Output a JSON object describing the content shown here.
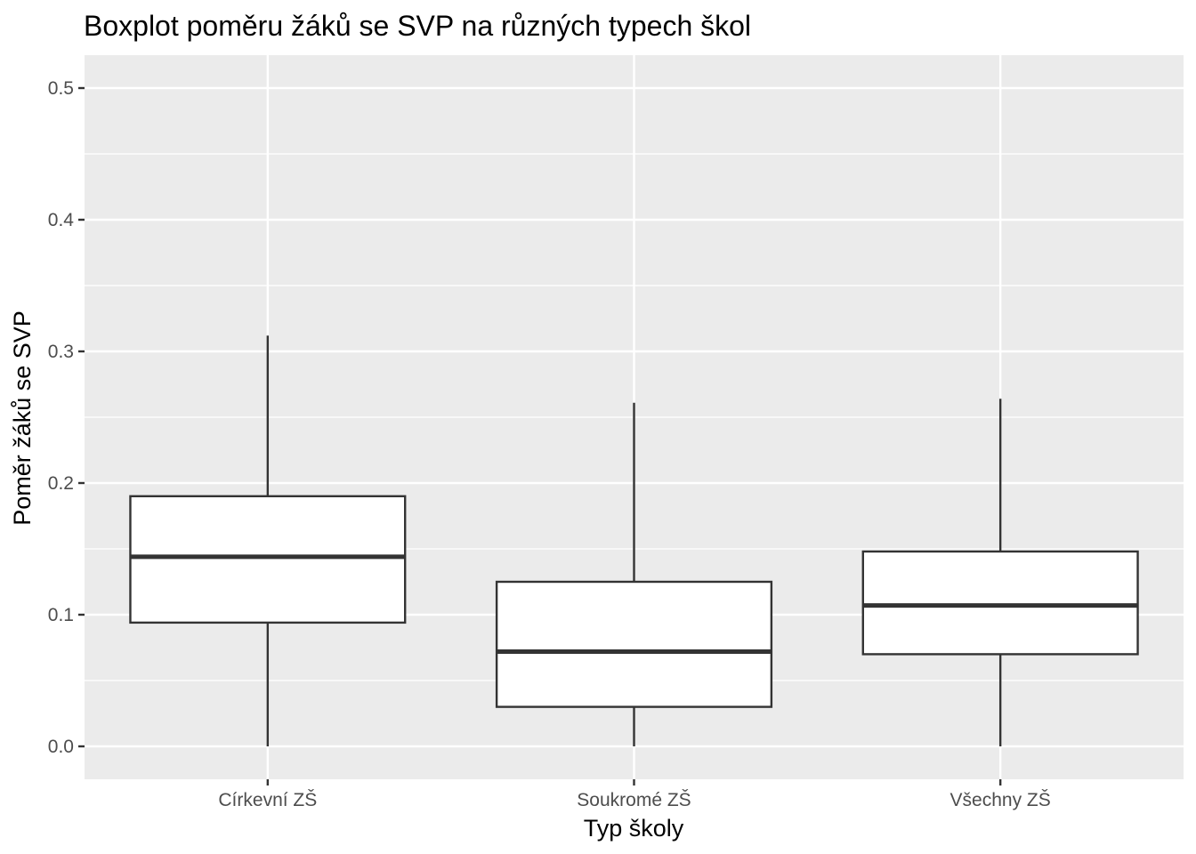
{
  "chart_data": {
    "type": "boxplot",
    "title": "Boxplot poměru žáků se SVP na různých typech škol",
    "xlabel": "Typ školy",
    "ylabel": "Poměr žáků se SVP",
    "ylim": [
      -0.025,
      0.525
    ],
    "y_ticks": [
      0.0,
      0.1,
      0.2,
      0.3,
      0.4,
      0.5
    ],
    "y_tick_labels": [
      "0.0",
      "0.1",
      "0.2",
      "0.3",
      "0.4",
      "0.5"
    ],
    "categories": [
      "Církevní ZŠ",
      "Soukromé ZŠ",
      "Všechny ZŠ"
    ],
    "boxes": [
      {
        "category": "Církevní ZŠ",
        "min": 0.0,
        "q1": 0.094,
        "median": 0.144,
        "q3": 0.19,
        "max": 0.312
      },
      {
        "category": "Soukromé ZŠ",
        "min": 0.0,
        "q1": 0.03,
        "median": 0.072,
        "q3": 0.125,
        "max": 0.261
      },
      {
        "category": "Všechny ZŠ",
        "min": 0.0,
        "q1": 0.07,
        "median": 0.107,
        "q3": 0.148,
        "max": 0.264
      }
    ],
    "grid": true,
    "legend": "none",
    "colors": {
      "panel_background": "#ebebeb",
      "grid_major": "#ffffff",
      "grid_minor": "#f5f5f5",
      "box_fill": "#ffffff",
      "box_stroke": "#333333",
      "tick_text": "#4d4d4d"
    }
  }
}
